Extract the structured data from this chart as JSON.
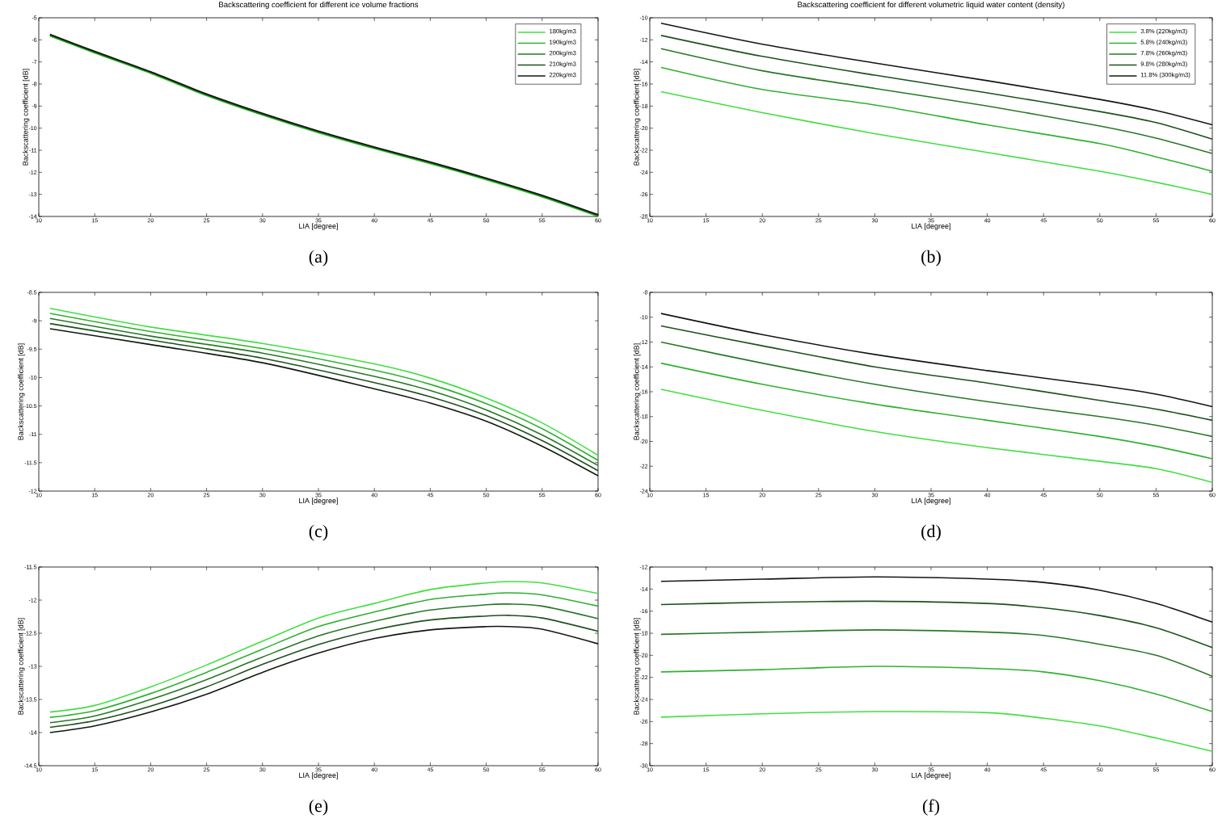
{
  "chart_data": [
    {
      "type": "line",
      "title": "Backscattering coefficient for different ice volume fractions",
      "xlabel": "LIA [degree]",
      "ylabel": "Backscattering coefficient [dB]",
      "annotations": [
        "(a)"
      ],
      "legend": "top right",
      "x": [
        11,
        15,
        20,
        25,
        30,
        35,
        40,
        45,
        50,
        55,
        60
      ],
      "xlim": [
        10,
        60
      ],
      "xticks": [
        10,
        15,
        20,
        25,
        30,
        35,
        40,
        45,
        50,
        55,
        60
      ],
      "ylim": [
        -14,
        -5
      ],
      "yticks": [
        -14,
        -13,
        -12,
        -11,
        -10,
        -9,
        -8,
        -7,
        -6,
        -5
      ],
      "series": [
        {
          "name": "180kg/m3",
          "color": "#40e040",
          "values": [
            -5.83,
            -6.6,
            -7.52,
            -8.53,
            -9.41,
            -10.21,
            -10.93,
            -11.61,
            -12.34,
            -13.12,
            -14.0
          ]
        },
        {
          "name": "190kg/m3",
          "color": "#30b030",
          "values": [
            -5.81,
            -6.58,
            -7.5,
            -8.51,
            -9.39,
            -10.19,
            -10.91,
            -11.59,
            -12.32,
            -13.1,
            -13.98
          ]
        },
        {
          "name": "200kg/m3",
          "color": "#287828",
          "values": [
            -5.79,
            -6.56,
            -7.48,
            -8.49,
            -9.37,
            -10.17,
            -10.89,
            -11.57,
            -12.3,
            -13.08,
            -13.96
          ]
        },
        {
          "name": "210kg/m3",
          "color": "#1e501e",
          "values": [
            -5.77,
            -6.54,
            -7.46,
            -8.47,
            -9.35,
            -10.15,
            -10.87,
            -11.55,
            -12.28,
            -13.06,
            -13.94
          ]
        },
        {
          "name": "220kg/m3",
          "color": "#101810",
          "values": [
            -5.75,
            -6.52,
            -7.44,
            -8.45,
            -9.33,
            -10.13,
            -10.85,
            -11.53,
            -12.26,
            -13.04,
            -13.92
          ]
        }
      ]
    },
    {
      "type": "line",
      "title": "Backscattering coefficient for different volumetric liquid water content (density)",
      "xlabel": "LIA [degree]",
      "ylabel": "Backscattering coefficient [dB]",
      "annotations": [
        "(b)"
      ],
      "legend": "top right",
      "x": [
        11,
        20,
        30,
        40,
        50,
        55,
        60
      ],
      "xlim": [
        10,
        60
      ],
      "xticks": [
        10,
        15,
        20,
        25,
        30,
        35,
        40,
        45,
        50,
        55,
        60
      ],
      "ylim": [
        -28,
        -10
      ],
      "yticks": [
        -28,
        -26,
        -24,
        -22,
        -20,
        -18,
        -16,
        -14,
        -12,
        -10
      ],
      "series": [
        {
          "name": "3.8% (220kg/m3)",
          "color": "#40e040",
          "values": [
            -16.7,
            -18.6,
            -20.5,
            -22.2,
            -23.9,
            -24.9,
            -26.0
          ]
        },
        {
          "name": "5.8% (240kg/m3)",
          "color": "#30b030",
          "values": [
            -14.5,
            -16.5,
            -17.9,
            -19.7,
            -21.4,
            -22.6,
            -23.9
          ]
        },
        {
          "name": "7.8% (260kg/m3)",
          "color": "#287828",
          "values": [
            -12.8,
            -14.8,
            -16.4,
            -18.0,
            -19.8,
            -20.9,
            -22.3
          ]
        },
        {
          "name": "9.8% (280kg/m3)",
          "color": "#1e501e",
          "values": [
            -11.6,
            -13.5,
            -15.2,
            -16.8,
            -18.5,
            -19.5,
            -21.0
          ]
        },
        {
          "name": "11.8% (300kg/m3)",
          "color": "#101810",
          "values": [
            -10.5,
            -12.4,
            -14.1,
            -15.7,
            -17.4,
            -18.4,
            -19.7
          ]
        }
      ]
    },
    {
      "type": "line",
      "xlabel": "LIA [degree]",
      "ylabel": "Backscattering coefficient [dB]",
      "annotations": [
        "(c)"
      ],
      "x": [
        11,
        20,
        30,
        40,
        45,
        50,
        55,
        60
      ],
      "xlim": [
        10,
        60
      ],
      "xticks": [
        10,
        15,
        20,
        25,
        30,
        35,
        40,
        45,
        50,
        55,
        60
      ],
      "ylim": [
        -12,
        -8.5
      ],
      "yticks": [
        -12,
        -11.5,
        -11,
        -10.5,
        -10,
        -9.5,
        -9,
        -8.5
      ],
      "series": [
        {
          "color": "#40e040",
          "values": [
            -8.78,
            -9.11,
            -9.4,
            -9.76,
            -10.01,
            -10.36,
            -10.8,
            -11.37
          ]
        },
        {
          "color": "#30b030",
          "values": [
            -8.87,
            -9.19,
            -9.49,
            -9.87,
            -10.12,
            -10.46,
            -10.9,
            -11.46
          ]
        },
        {
          "color": "#287828",
          "values": [
            -8.96,
            -9.27,
            -9.57,
            -9.98,
            -10.23,
            -10.57,
            -11.01,
            -11.55
          ]
        },
        {
          "color": "#1e501e",
          "values": [
            -9.05,
            -9.34,
            -9.66,
            -10.09,
            -10.34,
            -10.67,
            -11.11,
            -11.64
          ]
        },
        {
          "color": "#101810",
          "values": [
            -9.14,
            -9.42,
            -9.74,
            -10.2,
            -10.45,
            -10.77,
            -11.21,
            -11.73
          ]
        }
      ]
    },
    {
      "type": "line",
      "xlabel": "LIA [degree]",
      "ylabel": "Backscattering coefficient [dB]",
      "annotations": [
        "(d)"
      ],
      "x": [
        11,
        20,
        30,
        40,
        50,
        55,
        60
      ],
      "xlim": [
        10,
        60
      ],
      "xticks": [
        10,
        15,
        20,
        25,
        30,
        35,
        40,
        45,
        50,
        55,
        60
      ],
      "ylim": [
        -24,
        -8
      ],
      "yticks": [
        -24,
        -22,
        -20,
        -18,
        -16,
        -14,
        -12,
        -10,
        -8
      ],
      "series": [
        {
          "color": "#40e040",
          "values": [
            -15.8,
            -17.5,
            -19.2,
            -20.5,
            -21.6,
            -22.2,
            -23.3
          ]
        },
        {
          "color": "#30b030",
          "values": [
            -13.7,
            -15.4,
            -17.0,
            -18.3,
            -19.6,
            -20.4,
            -21.4
          ]
        },
        {
          "color": "#287828",
          "values": [
            -12.0,
            -13.7,
            -15.4,
            -16.8,
            -18.0,
            -18.7,
            -19.6
          ]
        },
        {
          "color": "#1e501e",
          "values": [
            -10.7,
            -12.3,
            -14.0,
            -15.3,
            -16.7,
            -17.4,
            -18.3
          ]
        },
        {
          "color": "#101810",
          "values": [
            -9.7,
            -11.4,
            -13.0,
            -14.3,
            -15.5,
            -16.2,
            -17.2
          ]
        }
      ]
    },
    {
      "type": "line",
      "xlabel": "LIA [degree]",
      "ylabel": "Backscattering coefficient [dB]",
      "annotations": [
        "(e)"
      ],
      "x": [
        11,
        15,
        20,
        25,
        30,
        35,
        40,
        45,
        50,
        52,
        55,
        60
      ],
      "xlim": [
        10,
        60
      ],
      "xticks": [
        10,
        15,
        20,
        25,
        30,
        35,
        40,
        45,
        50,
        55,
        60
      ],
      "ylim": [
        -14.5,
        -11.5
      ],
      "yticks": [
        -14.5,
        -14,
        -13.5,
        -13,
        -12.5,
        -12,
        -11.5
      ],
      "series": [
        {
          "color": "#40e040",
          "values": [
            -13.69,
            -13.59,
            -13.31,
            -12.98,
            -12.62,
            -12.27,
            -12.05,
            -11.84,
            -11.74,
            -11.72,
            -11.74,
            -11.9
          ]
        },
        {
          "color": "#30b030",
          "values": [
            -13.77,
            -13.67,
            -13.41,
            -13.09,
            -12.74,
            -12.4,
            -12.18,
            -11.99,
            -11.91,
            -11.89,
            -11.92,
            -12.09
          ]
        },
        {
          "color": "#287828",
          "values": [
            -13.85,
            -13.75,
            -13.5,
            -13.2,
            -12.86,
            -12.54,
            -12.32,
            -12.15,
            -12.07,
            -12.06,
            -12.09,
            -12.28
          ]
        },
        {
          "color": "#1e501e",
          "values": [
            -13.92,
            -13.82,
            -13.6,
            -13.31,
            -12.97,
            -12.67,
            -12.45,
            -12.3,
            -12.24,
            -12.23,
            -12.27,
            -12.47
          ]
        },
        {
          "color": "#101810",
          "values": [
            -14.0,
            -13.9,
            -13.69,
            -13.42,
            -13.09,
            -12.8,
            -12.58,
            -12.45,
            -12.4,
            -12.4,
            -12.44,
            -12.66
          ]
        }
      ]
    },
    {
      "type": "line",
      "xlabel": "LIA [degree]",
      "ylabel": "Backscattering coefficient [dB]",
      "annotations": [
        "(f)"
      ],
      "x": [
        11,
        20,
        30,
        40,
        45,
        50,
        55,
        60
      ],
      "xlim": [
        10,
        60
      ],
      "xticks": [
        10,
        15,
        20,
        25,
        30,
        35,
        40,
        45,
        50,
        55,
        60
      ],
      "ylim": [
        -30,
        -12
      ],
      "yticks": [
        -30,
        -28,
        -26,
        -24,
        -22,
        -20,
        -18,
        -16,
        -14,
        -12
      ],
      "series": [
        {
          "color": "#40e040",
          "values": [
            -25.6,
            -25.3,
            -25.1,
            -25.2,
            -25.7,
            -26.4,
            -27.5,
            -28.7
          ]
        },
        {
          "color": "#30b030",
          "values": [
            -21.5,
            -21.3,
            -21.0,
            -21.2,
            -21.5,
            -22.3,
            -23.5,
            -25.1
          ]
        },
        {
          "color": "#287828",
          "values": [
            -18.1,
            -17.9,
            -17.7,
            -17.9,
            -18.2,
            -19.0,
            -20.0,
            -21.9
          ]
        },
        {
          "color": "#1e501e",
          "values": [
            -15.4,
            -15.2,
            -15.1,
            -15.3,
            -15.7,
            -16.4,
            -17.5,
            -19.3
          ]
        },
        {
          "color": "#101810",
          "values": [
            -13.3,
            -13.1,
            -12.9,
            -13.1,
            -13.4,
            -14.1,
            -15.3,
            -17.0
          ]
        }
      ]
    }
  ]
}
